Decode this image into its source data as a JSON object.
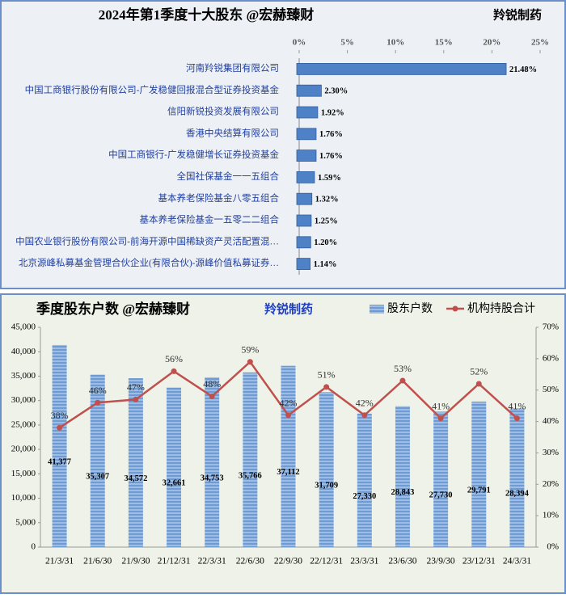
{
  "chart_data": [
    {
      "type": "barh",
      "title": "2024年第1季度十大股东 @宏赫臻财",
      "subtitle": "羚锐制药",
      "categories": [
        "河南羚锐集团有限公司",
        "中国工商银行股份有限公司-广发稳健回报混合型证券投资基金",
        "信阳新锐投资发展有限公司",
        "香港中央结算有限公司",
        "中国工商银行-广发稳健增长证券投资基金",
        "全国社保基金一一五组合",
        "基本养老保险基金八零五组合",
        "基本养老保险基金一五零二二组合",
        "中国农业银行股份有限公司-前海开源中国稀缺资产灵活配置混…",
        "北京源峰私募基金管理合伙企业(有限合伙)-源峰价值私募证券…"
      ],
      "values": [
        21.48,
        2.3,
        1.92,
        1.76,
        1.76,
        1.59,
        1.32,
        1.25,
        1.2,
        1.14
      ],
      "value_labels": [
        "21.48%",
        "2.30%",
        "1.92%",
        "1.76%",
        "1.76%",
        "1.59%",
        "1.32%",
        "1.25%",
        "1.20%",
        "1.14%"
      ],
      "color": "#4f81c7",
      "xlim": [
        0,
        25
      ],
      "xticks": [
        {
          "value": 0,
          "label": "0%"
        },
        {
          "value": 5,
          "label": "5%"
        },
        {
          "value": 10,
          "label": "10%"
        },
        {
          "value": 15,
          "label": "15%"
        },
        {
          "value": 20,
          "label": "20%"
        },
        {
          "value": 25,
          "label": "25%"
        }
      ]
    },
    {
      "type": "bar",
      "title": "季度股东户数 @宏赫臻财",
      "subtitle": "羚锐制药",
      "categories": [
        "21/3/31",
        "21/6/30",
        "21/9/30",
        "21/12/31",
        "22/3/31",
        "22/6/30",
        "22/9/30",
        "22/12/31",
        "23/3/31",
        "23/6/30",
        "23/9/30",
        "23/12/31",
        "24/3/31"
      ],
      "series": [
        {
          "name": "股东户数",
          "type": "bar",
          "color": "#7fa7d9",
          "values": [
            41377,
            35307,
            34572,
            32661,
            34753,
            35766,
            37112,
            31709,
            27330,
            28843,
            27730,
            29791,
            28394
          ],
          "value_labels": [
            "41,377",
            "35,307",
            "34,572",
            "32,661",
            "34,753",
            "35,766",
            "37,112",
            "31,709",
            "27,330",
            "28,843",
            "27,730",
            "29,791",
            "28,394"
          ]
        },
        {
          "name": "机构持股合计",
          "type": "line",
          "axis": "y2",
          "color": "#c0504d",
          "values": [
            38,
            46,
            47,
            56,
            48,
            59,
            42,
            51,
            42,
            53,
            41,
            52,
            41
          ],
          "value_labels": [
            "38%",
            "46%",
            "47%",
            "56%",
            "48%",
            "59%",
            "42%",
            "51%",
            "42%",
            "53%",
            "41%",
            "52%",
            "41%"
          ]
        }
      ],
      "legend": "top-right",
      "ylim": [
        0,
        45000
      ],
      "yticks": [
        0,
        {
          "value": 5000,
          "label": "5,000"
        },
        {
          "value": 10000,
          "label": "10,000"
        },
        {
          "value": 15000,
          "label": "15,000"
        },
        {
          "value": 20000,
          "label": "20,000"
        },
        {
          "value": 25000,
          "label": "25,000"
        },
        {
          "value": 30000,
          "label": "30,000"
        },
        {
          "value": 35000,
          "label": "35,000"
        },
        {
          "value": 40000,
          "label": "40,000"
        },
        {
          "value": 45000,
          "label": "45,000"
        }
      ],
      "y2lim": [
        0,
        70
      ],
      "y2ticks": [
        {
          "value": 0,
          "label": "0%"
        },
        {
          "value": 10,
          "label": "10%"
        },
        {
          "value": 20,
          "label": "20%"
        },
        {
          "value": 30,
          "label": "30%"
        },
        {
          "value": 40,
          "label": "40%"
        },
        {
          "value": 50,
          "label": "50%"
        },
        {
          "value": 60,
          "label": "60%"
        },
        {
          "value": 70,
          "label": "70%"
        }
      ]
    }
  ]
}
